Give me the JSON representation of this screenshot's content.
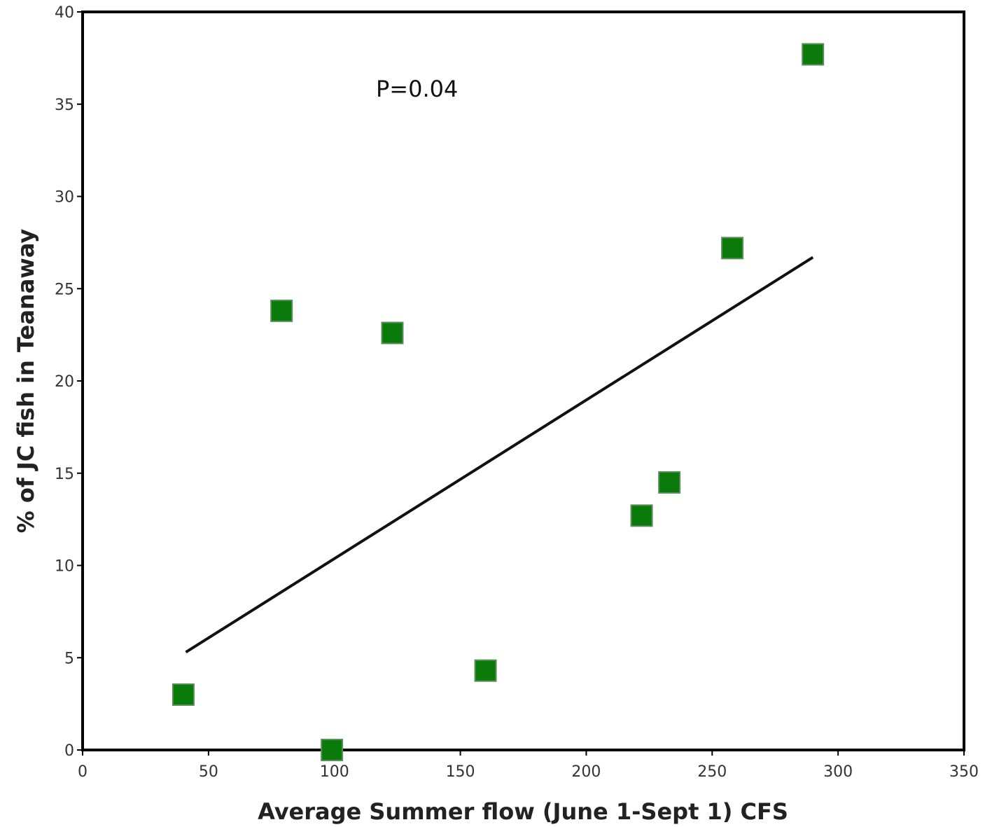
{
  "chart_data": {
    "type": "scatter",
    "title": "",
    "xlabel": "Average Summer flow (June 1-Sept 1) CFS",
    "ylabel": "% of JC fish in Teanaway",
    "xlim": [
      0,
      350
    ],
    "ylim": [
      0,
      40
    ],
    "x_ticks": [
      0,
      50,
      100,
      150,
      200,
      250,
      300,
      350
    ],
    "y_ticks": [
      0,
      5,
      10,
      15,
      20,
      25,
      30,
      35,
      40
    ],
    "grid": false,
    "legend": "none",
    "annotation": "P=0.04",
    "marker_color": "#0a7a0a",
    "trendline_color": "#111111",
    "points": [
      {
        "x": 40,
        "y": 3.0
      },
      {
        "x": 79,
        "y": 23.8
      },
      {
        "x": 99,
        "y": 0.0
      },
      {
        "x": 123,
        "y": 22.6
      },
      {
        "x": 160,
        "y": 4.3
      },
      {
        "x": 222,
        "y": 12.7
      },
      {
        "x": 233,
        "y": 14.5
      },
      {
        "x": 258,
        "y": 27.2
      },
      {
        "x": 290,
        "y": 37.7
      }
    ],
    "trendline": {
      "x": [
        41,
        290
      ],
      "y": [
        5.3,
        26.7
      ]
    }
  }
}
